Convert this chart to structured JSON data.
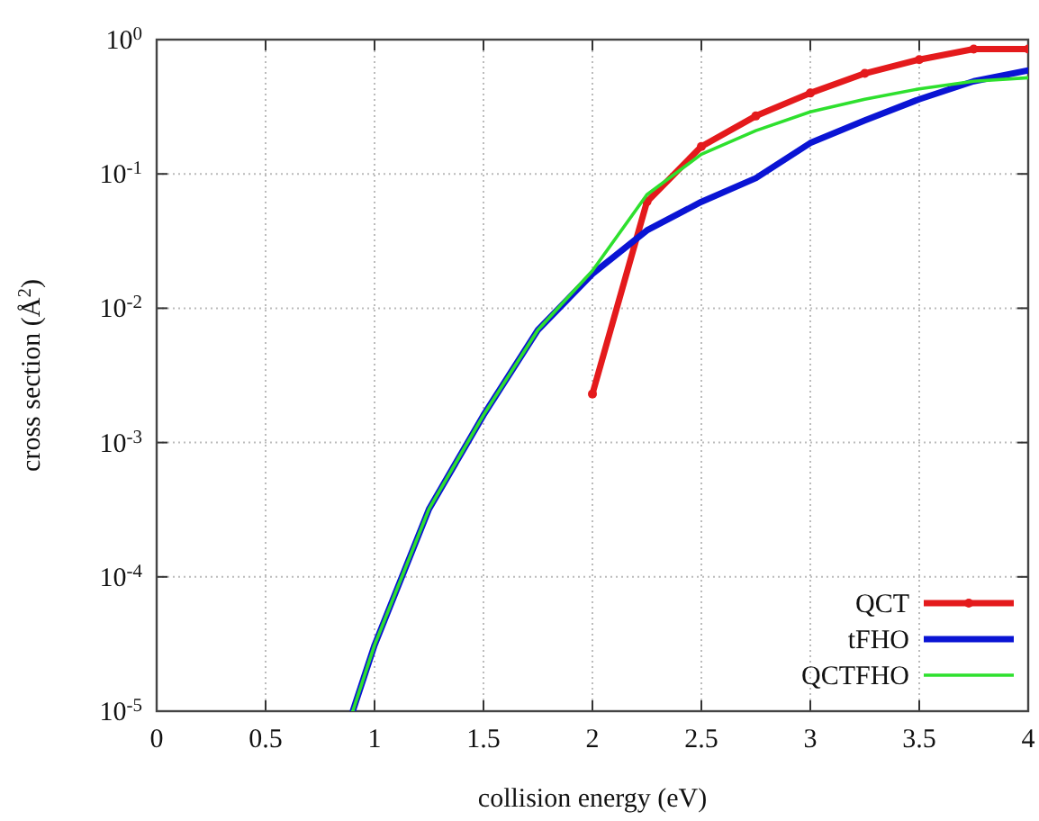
{
  "chart_data": {
    "type": "line",
    "xlabel": "collision energy (eV)",
    "ylabel": "cross section (Å$^{2}$)",
    "log": "y",
    "grid": true,
    "legend": "bottom right",
    "line_style": "solid",
    "xlim": [
      0,
      4
    ],
    "xticks": [
      0,
      0.5,
      1,
      1.5,
      2,
      2.5,
      3,
      3.5,
      4
    ],
    "ylim": [
      1e-05,
      1
    ],
    "yticks": [
      {
        "value": 1e-05,
        "label": "10$^{-5}$"
      },
      {
        "value": 0.0001,
        "label": "10$^{-4}$"
      },
      {
        "value": 0.001,
        "label": "10$^{-3}$"
      },
      {
        "value": 0.01,
        "label": "10$^{-2}$"
      },
      {
        "value": 0.1,
        "label": "10$^{-1}$"
      },
      {
        "value": 1,
        "label": "10$^{0}$"
      }
    ],
    "series": [
      {
        "name": "QCT",
        "color": "#e41a1c",
        "marker": "circle",
        "x": [
          2,
          2.25,
          2.5,
          2.75,
          3,
          3.25,
          3.5,
          3.75,
          4
        ],
        "values": [
          0.0023,
          0.062,
          0.16,
          0.27,
          0.4,
          0.56,
          0.71,
          0.85,
          0.85
        ]
      },
      {
        "name": "tFHO",
        "color": "#0a14d4",
        "marker": "none",
        "x": [
          0.9,
          1,
          1.25,
          1.5,
          1.75,
          2,
          2.25,
          2.5,
          2.75,
          3,
          3.25,
          3.5,
          3.75,
          4
        ],
        "values": [
          1e-05,
          3.1e-05,
          0.00032,
          0.0016,
          0.0069,
          0.018,
          0.038,
          0.062,
          0.093,
          0.17,
          0.25,
          0.36,
          0.49,
          0.59
        ]
      },
      {
        "name": "QCTFHO",
        "color": "#2ee02e",
        "marker": "none",
        "x": [
          0.9,
          1,
          1.25,
          1.5,
          1.75,
          2,
          2.25,
          2.5,
          2.75,
          3,
          3.25,
          3.5,
          3.75,
          4
        ],
        "values": [
          1e-05,
          3.1e-05,
          0.00032,
          0.0016,
          0.0069,
          0.019,
          0.07,
          0.14,
          0.21,
          0.29,
          0.36,
          0.43,
          0.49,
          0.52
        ]
      }
    ]
  }
}
